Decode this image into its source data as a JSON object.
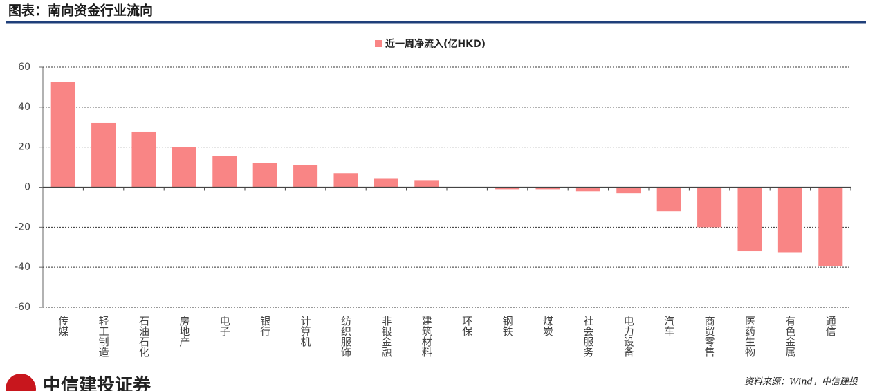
{
  "chart_data": {
    "type": "bar",
    "title": "图表：南向资金行业流向",
    "categories": [
      "传媒",
      "轻工制造",
      "石油石化",
      "房地产",
      "电子",
      "银行",
      "计算机",
      "纺织服饰",
      "非银金融",
      "建筑材料",
      "环保",
      "钢铁",
      "煤炭",
      "社会服务",
      "电力设备",
      "汽车",
      "商贸零售",
      "医药生物",
      "有色金属",
      "通信"
    ],
    "series": [
      {
        "name": "近一周净流入(亿HKD)",
        "color": "#f98585",
        "values": [
          52.5,
          32,
          27.5,
          20,
          15.5,
          12,
          11,
          7,
          4.5,
          3.5,
          -0.5,
          -1,
          -1,
          -2,
          -3,
          -12,
          -20,
          -32,
          -32.5,
          -39.5
        ]
      }
    ],
    "ylim": [
      -60,
      60
    ],
    "yticks": [
      -60,
      -40,
      -20,
      0,
      20,
      40,
      60
    ],
    "grid": true,
    "legend": "top"
  },
  "footer": {
    "logo": "中信建投证券",
    "source": "资料来源：Wind，中信建投"
  }
}
